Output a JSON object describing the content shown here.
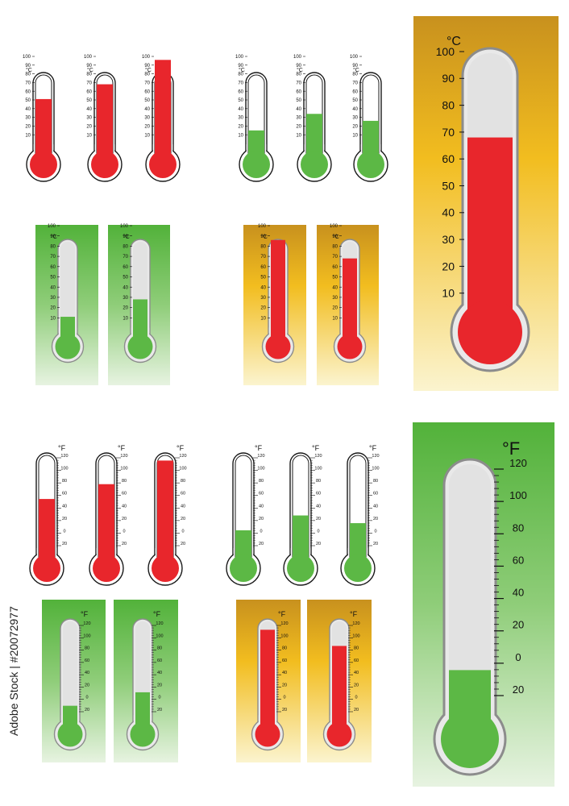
{
  "stock_id": "Adobe Stock | #20072977",
  "unit_labels": {
    "celsius": "°C",
    "fahrenheit": "°F"
  },
  "colors": {
    "red": "#e8262c",
    "green": "#5cb845",
    "tube_empty": "#e2e2e2",
    "panel_gold_top": "#c8911e",
    "panel_gold_mid": "#f2bd1f",
    "panel_gold_bottom": "#fbf4cf",
    "panel_green_top": "#52b23a",
    "panel_green_bottom": "#e7f3e1"
  },
  "scales": {
    "celsius": {
      "min": 0,
      "max": 100,
      "labels": [
        "100",
        "90",
        "80",
        "70",
        "60",
        "50",
        "40",
        "30",
        "20",
        "10"
      ]
    },
    "fahrenheit": {
      "min": -40,
      "max": 120,
      "labels": [
        "120",
        "100",
        "80",
        "60",
        "40",
        "20",
        "0",
        "20"
      ]
    }
  },
  "thermometers": [
    {
      "scale": "celsius",
      "panel": "none",
      "fill": "red",
      "value": 51
    },
    {
      "scale": "celsius",
      "panel": "none",
      "fill": "red",
      "value": 68
    },
    {
      "scale": "celsius",
      "panel": "none",
      "fill": "red",
      "value": 96
    },
    {
      "scale": "celsius",
      "panel": "none",
      "fill": "green",
      "value": 15
    },
    {
      "scale": "celsius",
      "panel": "none",
      "fill": "green",
      "value": 34
    },
    {
      "scale": "celsius",
      "panel": "none",
      "fill": "green",
      "value": 26
    },
    {
      "scale": "celsius",
      "panel": "green",
      "fill": "green",
      "value": 11
    },
    {
      "scale": "celsius",
      "panel": "green",
      "fill": "green",
      "value": 28
    },
    {
      "scale": "celsius",
      "panel": "gold",
      "fill": "red",
      "value": 86
    },
    {
      "scale": "celsius",
      "panel": "gold",
      "fill": "red",
      "value": 68
    },
    {
      "scale": "celsius",
      "panel": "gold",
      "fill": "red",
      "value": 68
    },
    {
      "scale": "fahrenheit",
      "panel": "none",
      "fill": "red",
      "value": 45
    },
    {
      "scale": "fahrenheit",
      "panel": "none",
      "fill": "red",
      "value": 72
    },
    {
      "scale": "fahrenheit",
      "panel": "none",
      "fill": "red",
      "value": 115
    },
    {
      "scale": "fahrenheit",
      "panel": "none",
      "fill": "green",
      "value": -12
    },
    {
      "scale": "fahrenheit",
      "panel": "none",
      "fill": "green",
      "value": 15
    },
    {
      "scale": "fahrenheit",
      "panel": "none",
      "fill": "green",
      "value": 1
    },
    {
      "scale": "fahrenheit",
      "panel": "green",
      "fill": "green",
      "value": -29
    },
    {
      "scale": "fahrenheit",
      "panel": "green",
      "fill": "green",
      "value": -4
    },
    {
      "scale": "fahrenheit",
      "panel": "gold",
      "fill": "red",
      "value": 112
    },
    {
      "scale": "fahrenheit",
      "panel": "gold",
      "fill": "red",
      "value": 82
    },
    {
      "scale": "fahrenheit",
      "panel": "green",
      "fill": "green",
      "value": -22
    }
  ]
}
